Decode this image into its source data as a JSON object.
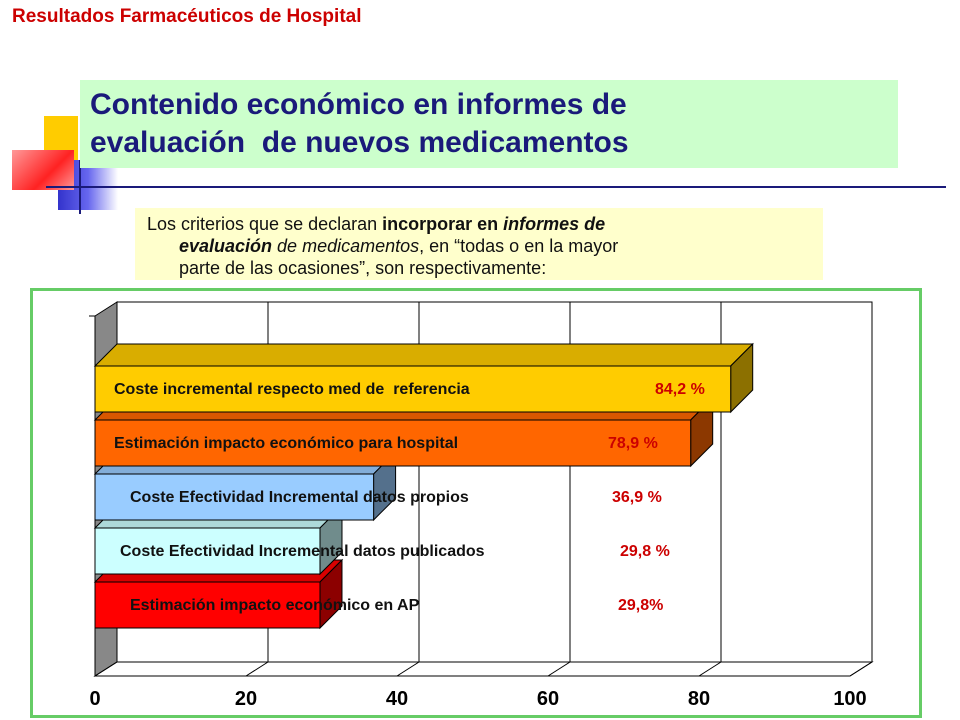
{
  "header": {
    "title": "Resultados Farmacéuticos de Hospital"
  },
  "slide": {
    "title_line1": "Contenido económico en informes de",
    "title_line2": "evaluación  de nuevos medicamentos",
    "intro": {
      "line1_pre": "Los criterios que se declaran ",
      "line1_bold": "incorporar en ",
      "line1_bolditalic": "informes de",
      "line2_bolditalic": "evaluación",
      "line2_italic": " de medicamentos",
      "line2_rest": ", en “todas o en la mayor",
      "line3": "parte de las ocasiones”, son respectivamente:"
    }
  },
  "colors": {
    "title": "#1a1a7a",
    "header": "#cc0000",
    "value": "#cc0000"
  },
  "chart_data": {
    "type": "bar",
    "orientation": "horizontal",
    "three_d": true,
    "categories": [
      "Coste incremental respecto med de  referencia",
      "Estimación impacto económico para hospital",
      "Coste Efectividad Incremental datos propios",
      "Coste Efectividad Incremental datos publicados",
      "Estimación impacto económico en AP"
    ],
    "values": [
      84.2,
      78.9,
      36.9,
      29.8,
      29.8
    ],
    "value_labels": [
      "84,2 %",
      "78,9 %",
      "36,9 %",
      "29,8 %",
      "29,8%"
    ],
    "bar_colors": [
      "#ffcc00",
      "#ff6600",
      "#99ccff",
      "#ccffff",
      "#ff0000"
    ],
    "xlim": [
      0,
      100
    ],
    "xticks": [
      "0",
      "20",
      "40",
      "60",
      "80",
      "100"
    ],
    "grid": true,
    "legend": "none"
  }
}
